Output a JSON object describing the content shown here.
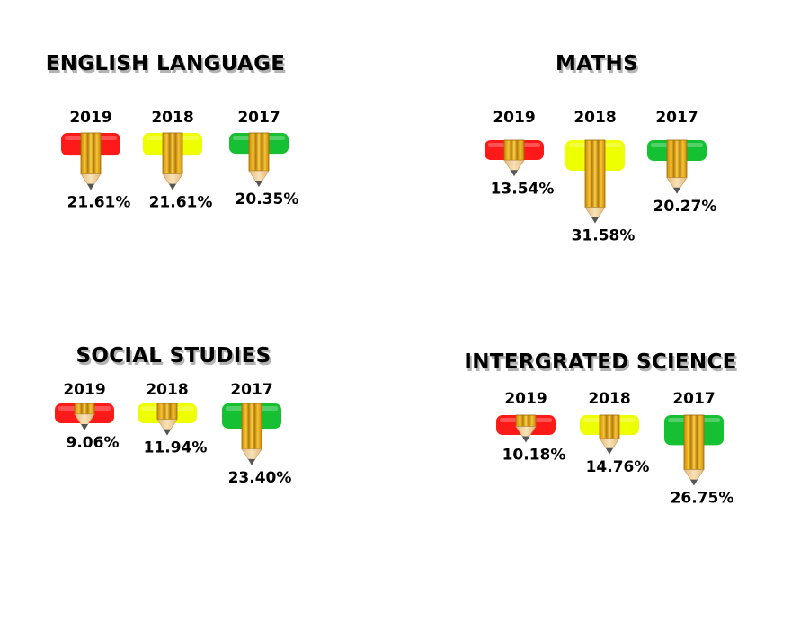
{
  "colors": {
    "year_2019": "#ff1a1a",
    "year_2018": "#eeff00",
    "year_2017": "#16c033",
    "pencil_body": "#f2b51e",
    "pencil_wood": "#f5d79a",
    "pencil_lead": "#555555"
  },
  "chart_data": [
    {
      "type": "bar",
      "title": "ENGLISH LANGUAGE",
      "categories": [
        "2019",
        "2018",
        "2017"
      ],
      "values": [
        21.61,
        21.61,
        20.35
      ],
      "labels": [
        "21.61%",
        "21.61%",
        "20.35%"
      ]
    },
    {
      "type": "bar",
      "title": "MATHS",
      "categories": [
        "2019",
        "2018",
        "2017"
      ],
      "values": [
        13.54,
        31.58,
        20.27
      ],
      "labels": [
        "13.54%",
        "31.58%",
        "20.27%"
      ]
    },
    {
      "type": "bar",
      "title": "SOCIAL STUDIES",
      "categories": [
        "2019",
        "2018",
        "2017"
      ],
      "values": [
        9.06,
        11.94,
        23.4
      ],
      "labels": [
        "9.06%",
        "11.94%",
        "23.40%"
      ]
    },
    {
      "type": "bar",
      "title": "INTERGRATED SCIENCE",
      "categories": [
        "2019",
        "2018",
        "2017"
      ],
      "values": [
        10.18,
        14.76,
        26.75
      ],
      "labels": [
        "10.18%",
        "14.76%",
        "26.75%"
      ]
    }
  ]
}
